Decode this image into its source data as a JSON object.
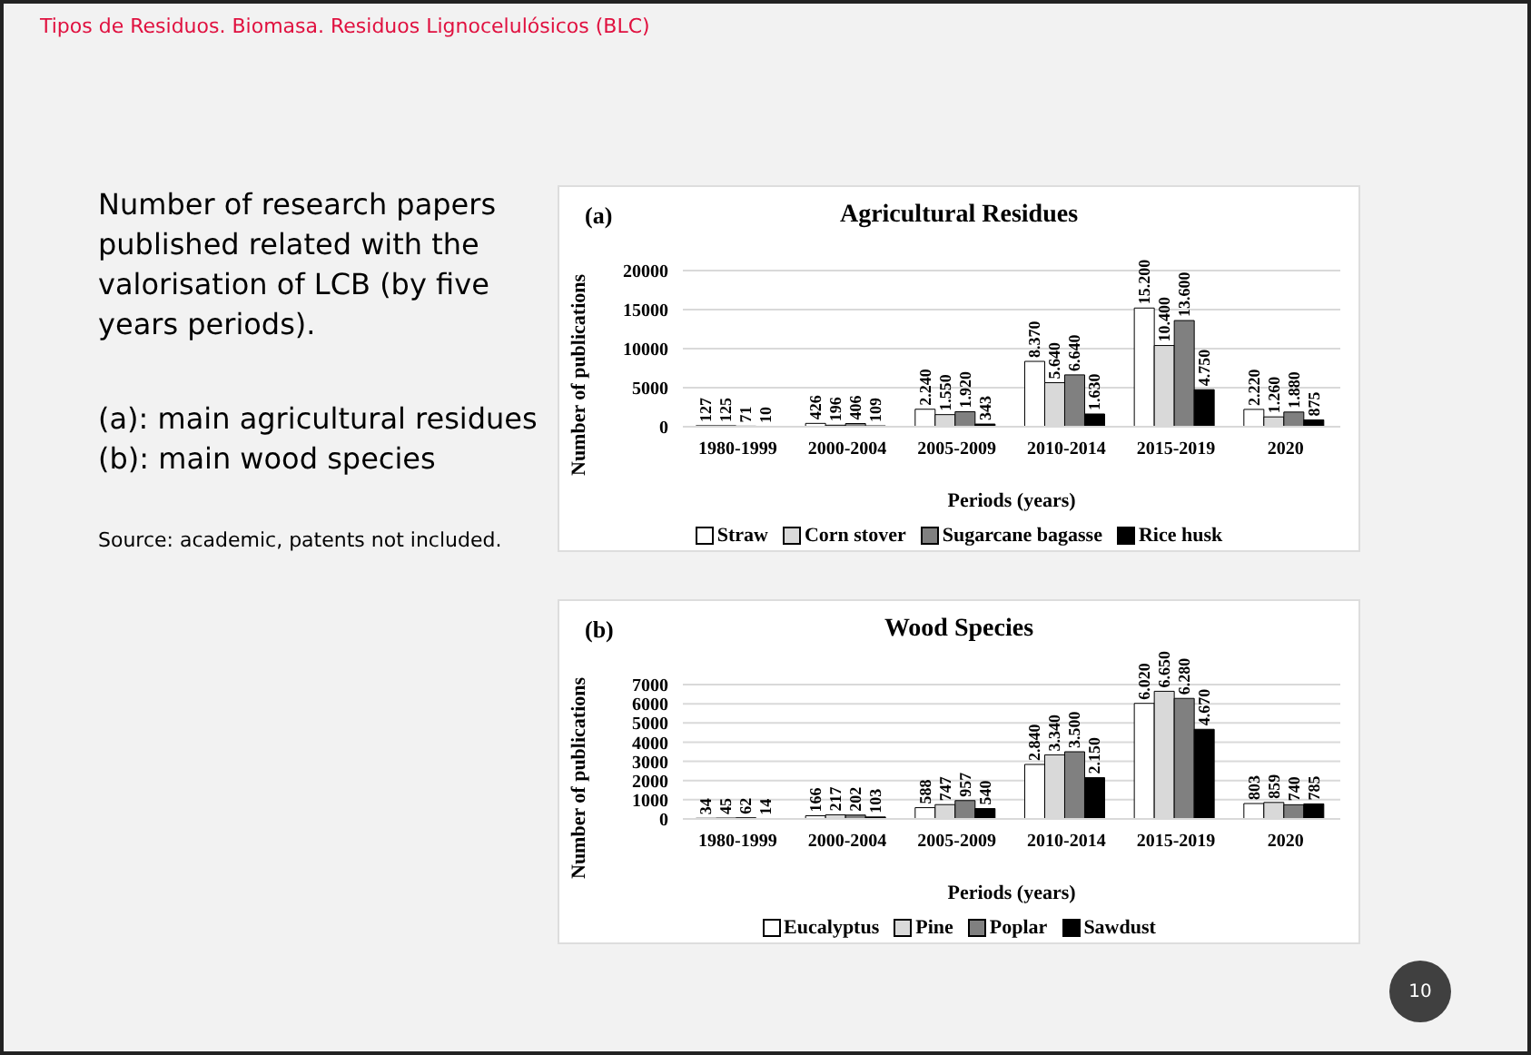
{
  "chart_data": [
    {
      "type": "other",
      "title": "Tipos de Residuos. Biomasa. Residuos Lignocelulósicos (BLC)",
      "annotations": [
        "Number of research papers published related with the valorisation of LCB (by five years periods).",
        "(a): main agricultural residues",
        "(b): main wood species",
        "Source: academic, patents not included.",
        "10"
      ]
    },
    {
      "type": "bar",
      "subtitle": "(a)",
      "title": "Agricultural Residues",
      "xlabel": "Periods (years)",
      "ylabel": "Number of publications",
      "categories": [
        "1980-1999",
        "2000-2004",
        "2005-2009",
        "2010-2014",
        "2015-2019",
        "2020"
      ],
      "ylim": [
        0,
        20000
      ],
      "yticks": [
        0,
        5000,
        10000,
        15000,
        20000
      ],
      "grid": "y",
      "legend": "bottom",
      "series": [
        {
          "name": "Straw",
          "color": "#ffffff",
          "values": [
            127,
            426,
            2240,
            8370,
            15200,
            2220
          ],
          "value_labels": [
            "127",
            "426",
            "2.240",
            "8.370",
            "15.200",
            "2.220"
          ]
        },
        {
          "name": "Corn stover",
          "color": "#d9d9d9",
          "values": [
            125,
            196,
            1550,
            5640,
            10400,
            1260
          ],
          "value_labels": [
            "125",
            "196",
            "1.550",
            "5.640",
            "10.400",
            "1.260"
          ]
        },
        {
          "name": "Sugarcane bagasse",
          "color": "#808080",
          "values": [
            71,
            406,
            1920,
            6640,
            13600,
            1880
          ],
          "value_labels": [
            "71",
            "406",
            "1.920",
            "6.640",
            "13.600",
            "1.880"
          ]
        },
        {
          "name": "Rice husk",
          "color": "#000000",
          "values": [
            10,
            109,
            343,
            1630,
            4750,
            875
          ],
          "value_labels": [
            "10",
            "109",
            "343",
            "1.630",
            "4.750",
            "875"
          ]
        }
      ]
    },
    {
      "type": "bar",
      "subtitle": "(b)",
      "title": "Wood Species",
      "xlabel": "Periods (years)",
      "ylabel": "Number of publications",
      "categories": [
        "1980-1999",
        "2000-2004",
        "2005-2009",
        "2010-2014",
        "2015-2019",
        "2020"
      ],
      "ylim": [
        0,
        7000
      ],
      "yticks": [
        0,
        1000,
        2000,
        3000,
        4000,
        5000,
        6000,
        7000
      ],
      "grid": "y",
      "legend": "bottom",
      "series": [
        {
          "name": "Eucalyptus",
          "color": "#ffffff",
          "values": [
            34,
            166,
            588,
            2840,
            6020,
            803
          ],
          "value_labels": [
            "34",
            "166",
            "588",
            "2.840",
            "6.020",
            "803"
          ]
        },
        {
          "name": "Pine",
          "color": "#d9d9d9",
          "values": [
            45,
            217,
            747,
            3340,
            6650,
            859
          ],
          "value_labels": [
            "45",
            "217",
            "747",
            "3.340",
            "6.650",
            "859"
          ]
        },
        {
          "name": "Poplar",
          "color": "#808080",
          "values": [
            62,
            202,
            957,
            3500,
            6280,
            740
          ],
          "value_labels": [
            "62",
            "202",
            "957",
            "3.500",
            "6.280",
            "740"
          ]
        },
        {
          "name": "Sawdust",
          "color": "#000000",
          "values": [
            14,
            103,
            540,
            2150,
            4670,
            785
          ],
          "value_labels": [
            "14",
            "103",
            "540",
            "2.150",
            "4.670",
            "785"
          ]
        }
      ]
    }
  ]
}
